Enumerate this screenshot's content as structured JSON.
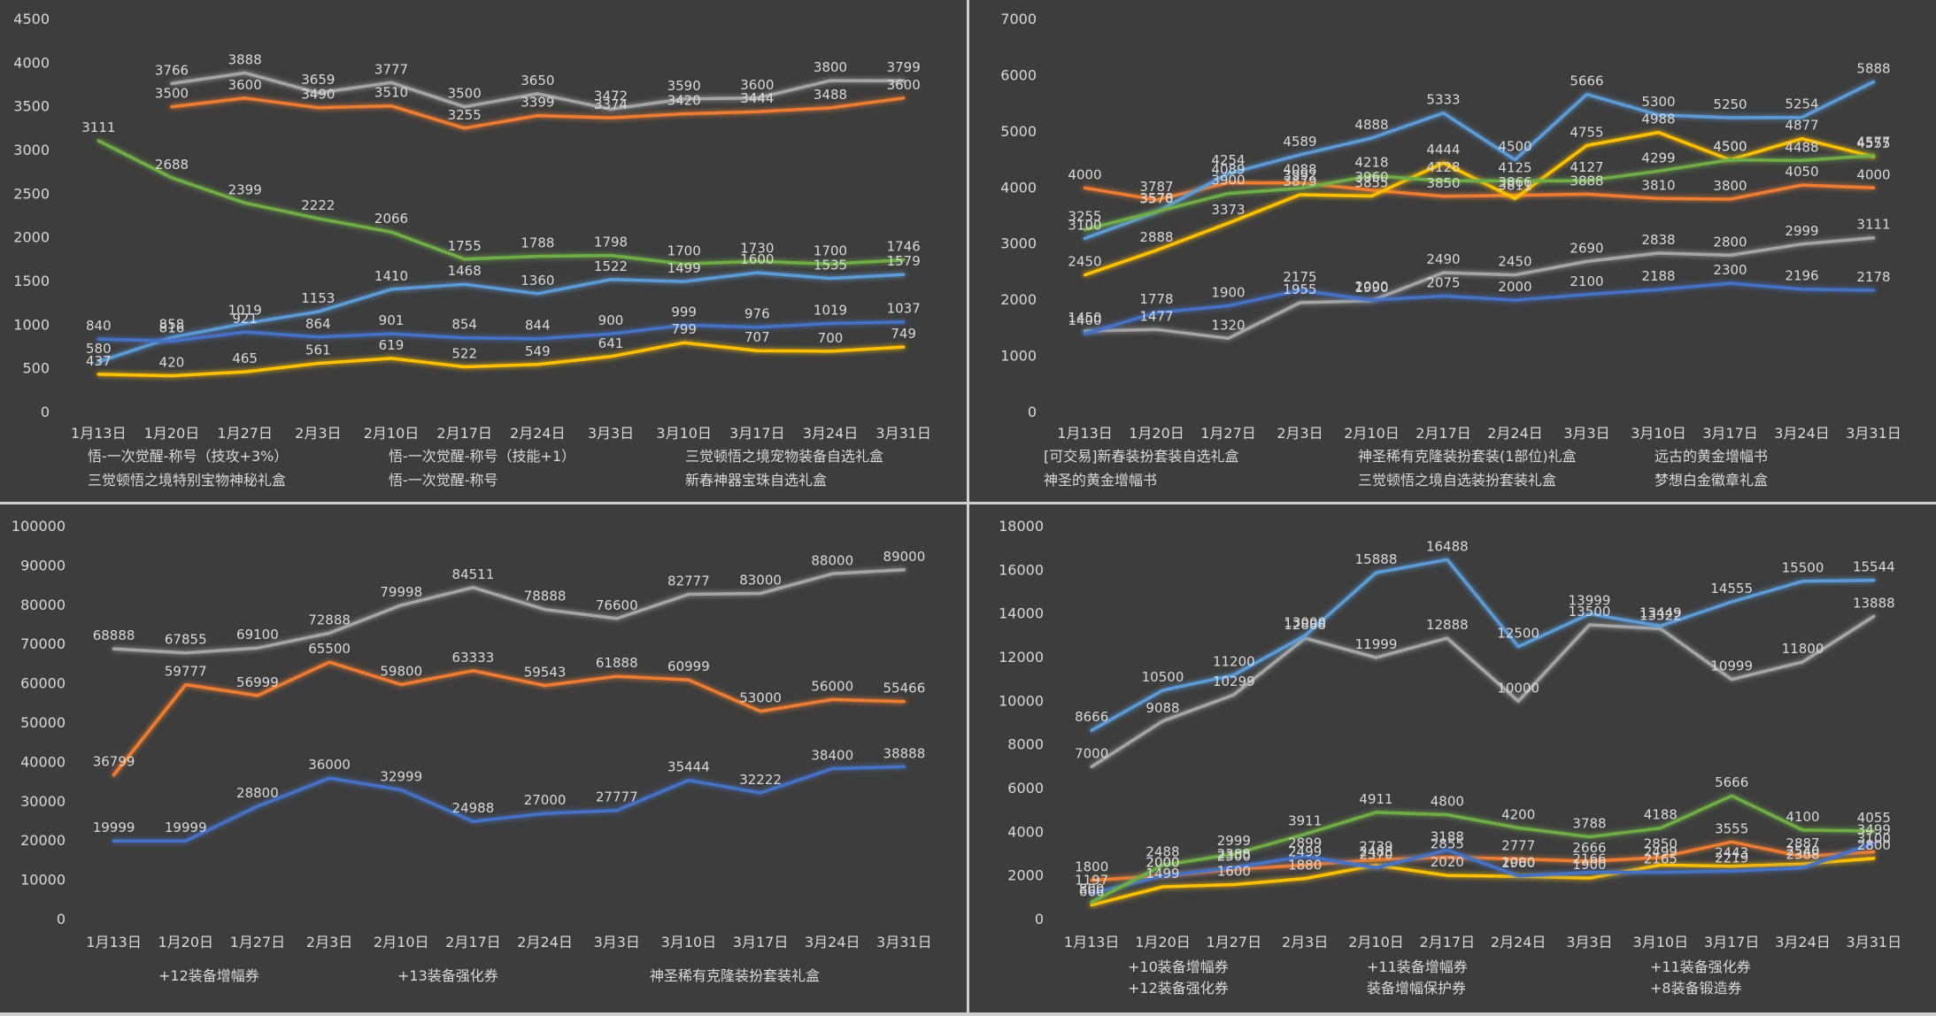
{
  "chart_data": [
    {
      "type": "line",
      "categories": [
        "1月13日",
        "1月20日",
        "1月27日",
        "2月3日",
        "2月10日",
        "2月17日",
        "2月24日",
        "3月3日",
        "3月10日",
        "3月17日",
        "3月24日",
        "3月31日"
      ],
      "ylim": [
        0,
        4500
      ],
      "yticks": [
        0,
        500,
        1000,
        1500,
        2000,
        2500,
        3000,
        3500,
        4000,
        4500
      ],
      "grid": false,
      "legend_position": "bottom",
      "series": [
        {
          "name": "悟-一次觉醒-称号（技攻+3%）",
          "color": "#ed7d31",
          "values": [
            null,
            3500,
            3600,
            3490,
            3510,
            3255,
            3399,
            3374,
            3420,
            3444,
            3488,
            3600
          ]
        },
        {
          "name": "悟-一次觉醒-称号（技能+1）",
          "color": "#a5a5a5",
          "values": [
            null,
            3766,
            3888,
            3659,
            3777,
            3500,
            3650,
            3472,
            3590,
            3600,
            3800,
            3799
          ]
        },
        {
          "name": "三觉顿悟之境宠物装备自选礼盒",
          "color": "#ffc000",
          "values": [
            437,
            420,
            465,
            561,
            619,
            522,
            549,
            641,
            799,
            707,
            700,
            749
          ]
        },
        {
          "name": "三觉顿悟之境特别宝物神秘礼盒",
          "color": "#5b9bd5",
          "values": [
            580,
            858,
            1019,
            1153,
            1410,
            1468,
            1360,
            1522,
            1499,
            1600,
            1535,
            1579
          ]
        },
        {
          "name": "悟-一次觉醒-称号",
          "color": "#4472c4",
          "values": [
            840,
            816,
            921,
            864,
            901,
            854,
            844,
            900,
            999,
            976,
            1019,
            1037
          ]
        },
        {
          "name": "新春神器宝珠自选礼盒",
          "color": "#70ad47",
          "values": [
            3111,
            2688,
            2399,
            2222,
            2066,
            1755,
            1788,
            1798,
            1700,
            1730,
            1700,
            1746
          ]
        }
      ]
    },
    {
      "type": "line",
      "categories": [
        "1月13日",
        "1月20日",
        "1月27日",
        "2月3日",
        "2月10日",
        "2月17日",
        "2月24日",
        "3月3日",
        "3月10日",
        "3月17日",
        "3月24日",
        "3月31日"
      ],
      "ylim": [
        0,
        7000
      ],
      "yticks": [
        0,
        1000,
        2000,
        3000,
        4000,
        5000,
        6000,
        7000
      ],
      "grid": false,
      "legend_position": "bottom",
      "series": [
        {
          "name": "[可交易]新春装扮套装自选礼盒",
          "color": "#ed7d31",
          "values": [
            4000,
            3787,
            4089,
            4088,
            3960,
            3850,
            3866,
            3888,
            3810,
            3800,
            4050,
            4000
          ]
        },
        {
          "name": "神圣稀有克隆装扮套装(1部位)礼盒",
          "color": "#a5a5a5",
          "values": [
            1450,
            1477,
            1320,
            1955,
            1990,
            2490,
            2450,
            2690,
            2838,
            2800,
            2999,
            3111
          ]
        },
        {
          "name": "远古的黄金增幅书",
          "color": "#ffc000",
          "values": [
            2450,
            2888,
            3373,
            3879,
            3855,
            4444,
            3811,
            4755,
            4988,
            4500,
            4877,
            4555
          ]
        },
        {
          "name": "神圣的黄金增幅书",
          "color": "#5b9bd5",
          "values": [
            3100,
            3570,
            4254,
            4589,
            4888,
            5333,
            4500,
            5666,
            5300,
            5250,
            5254,
            5888
          ]
        },
        {
          "name": "三觉顿悟之境自选装扮套装礼盒",
          "color": "#4472c4",
          "values": [
            1400,
            1778,
            1900,
            2175,
            2000,
            2075,
            2000,
            2100,
            2188,
            2300,
            2196,
            2178
          ]
        },
        {
          "name": "梦想白金徽章礼盒",
          "color": "#70ad47",
          "values": [
            3255,
            3578,
            3900,
            3992,
            4218,
            4128,
            4125,
            4127,
            4299,
            4500,
            4488,
            4577
          ]
        }
      ]
    },
    {
      "type": "line",
      "categories": [
        "1月13日",
        "1月20日",
        "1月27日",
        "2月3日",
        "2月10日",
        "2月17日",
        "2月24日",
        "3月3日",
        "3月10日",
        "3月17日",
        "3月24日",
        "3月31日"
      ],
      "ylim": [
        0,
        100000
      ],
      "yticks": [
        0,
        10000,
        20000,
        30000,
        40000,
        50000,
        60000,
        70000,
        80000,
        90000,
        100000
      ],
      "grid": false,
      "legend_position": "bottom",
      "series": [
        {
          "name": "+12装备增幅券",
          "color": "#ed7d31",
          "values": [
            36799,
            59777,
            56999,
            65500,
            59800,
            63333,
            59543,
            61888,
            60999,
            53000,
            56000,
            55466
          ]
        },
        {
          "name": "+13装备强化券",
          "color": "#a5a5a5",
          "values": [
            68888,
            67855,
            69100,
            72888,
            79998,
            84511,
            78888,
            76600,
            82777,
            83000,
            88000,
            89000
          ]
        },
        {
          "name": "神圣稀有克隆装扮套装礼盒",
          "color": "#4472c4",
          "values": [
            19999,
            19999,
            28800,
            36000,
            32999,
            24988,
            27000,
            27777,
            35444,
            32222,
            38400,
            38888
          ]
        }
      ]
    },
    {
      "type": "line",
      "categories": [
        "1月13日",
        "1月20日",
        "1月27日",
        "2月3日",
        "2月10日",
        "2月17日",
        "2月24日",
        "3月3日",
        "3月10日",
        "3月17日",
        "3月24日",
        "3月31日"
      ],
      "ylim": [
        0,
        18000
      ],
      "yticks": [
        0,
        2000,
        4000,
        6000,
        8000,
        10000,
        12000,
        14000,
        16000,
        18000
      ],
      "grid": false,
      "legend_position": "bottom",
      "series": [
        {
          "name": "+10装备增幅券",
          "color": "#ed7d31",
          "values": [
            1800,
            2000,
            2300,
            2499,
            2739,
            2855,
            2777,
            2666,
            2850,
            3555,
            2887,
            3100
          ]
        },
        {
          "name": "+11装备增幅券",
          "color": "#a5a5a5",
          "values": [
            7000,
            9088,
            10299,
            12888,
            11999,
            12888,
            10000,
            13500,
            13322,
            10999,
            11800,
            13888
          ]
        },
        {
          "name": "+11装备强化券",
          "color": "#ffc000",
          "values": [
            666,
            1499,
            1600,
            1880,
            2488,
            2020,
            1980,
            1900,
            2499,
            2443,
            2540,
            2800
          ]
        },
        {
          "name": "+12装备强化券",
          "color": "#5b9bd5",
          "values": [
            8666,
            10500,
            11200,
            13000,
            15888,
            16488,
            12500,
            13999,
            13449,
            14555,
            15500,
            15544
          ]
        },
        {
          "name": "装备增幅保护券",
          "color": "#4472c4",
          "values": [
            1197,
            2000,
            2388,
            2899,
            2370,
            3188,
            2000,
            2166,
            2165,
            2219,
            2368,
            3499
          ]
        },
        {
          "name": "+8装备锻造券",
          "color": "#70ad47",
          "values": [
            800,
            2488,
            2999,
            3911,
            4911,
            4800,
            4200,
            3788,
            4188,
            5666,
            4100,
            4055
          ]
        }
      ]
    }
  ]
}
